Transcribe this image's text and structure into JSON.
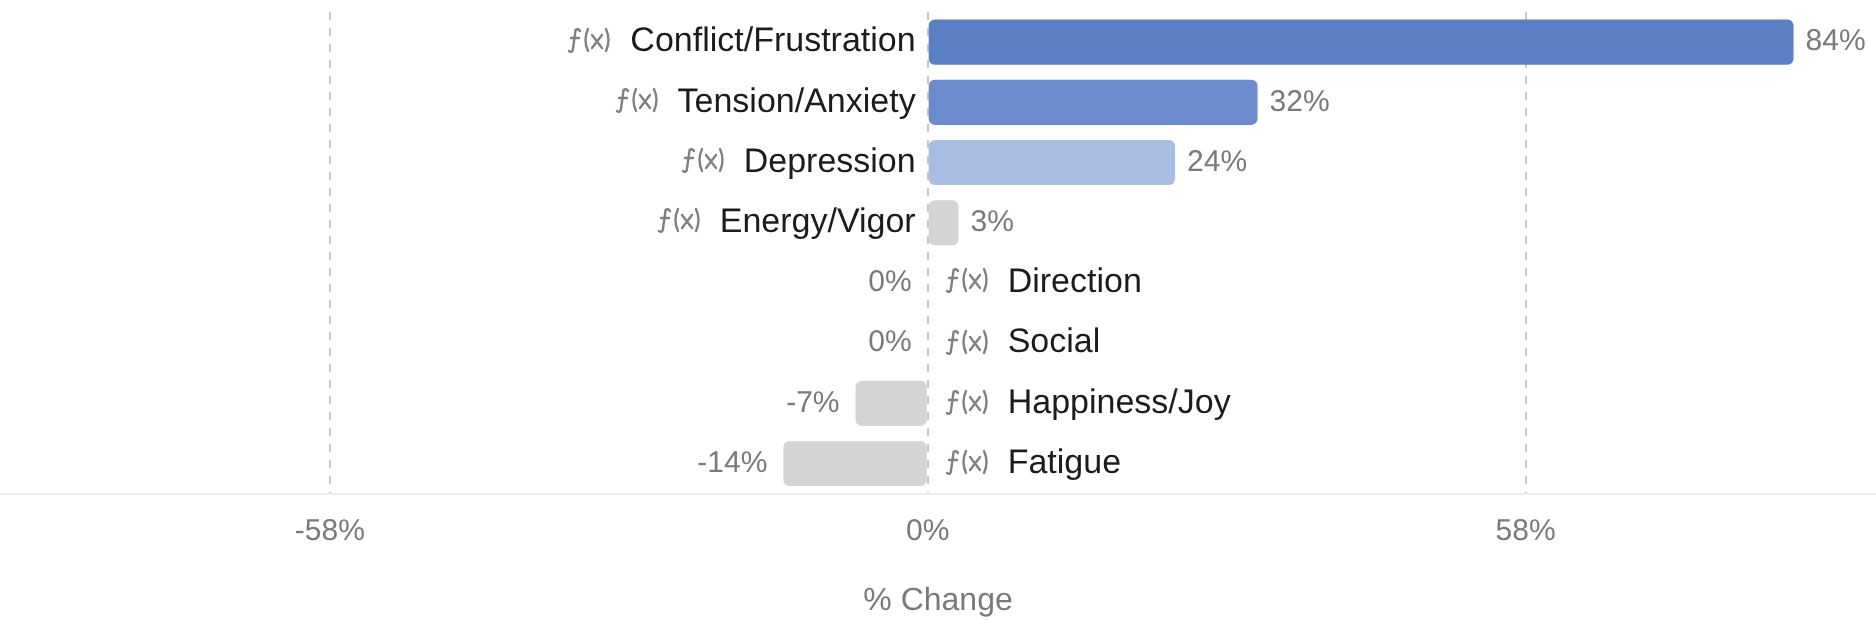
{
  "chart_data": {
    "type": "bar",
    "orientation": "horizontal",
    "xlabel": "% Change",
    "categories": [
      "Conflict/Frustration",
      "Tension/Anxiety",
      "Depression",
      "Energy/Vigor",
      "Direction",
      "Social",
      "Happiness/Joy",
      "Fatigue"
    ],
    "values": [
      84,
      32,
      24,
      3,
      0,
      0,
      -7,
      -14
    ],
    "colors": [
      "#5b7fc4",
      "#6a8ccc",
      "#a9bde3",
      "#d4d4d6",
      "#8e8e8e",
      "#8e8e8e",
      "#d4d4d6",
      "#d4d4d6"
    ],
    "value_labels": [
      "84%",
      "32%",
      "24%",
      "3%",
      "0%",
      "0%",
      "-7%",
      "-14%"
    ],
    "xlim": [
      -90,
      92
    ],
    "xticks": [
      {
        "value": -58,
        "label": "-58%"
      },
      {
        "value": 0,
        "label": "0%"
      },
      {
        "value": 58,
        "label": "58%"
      }
    ],
    "grid": "x"
  }
}
